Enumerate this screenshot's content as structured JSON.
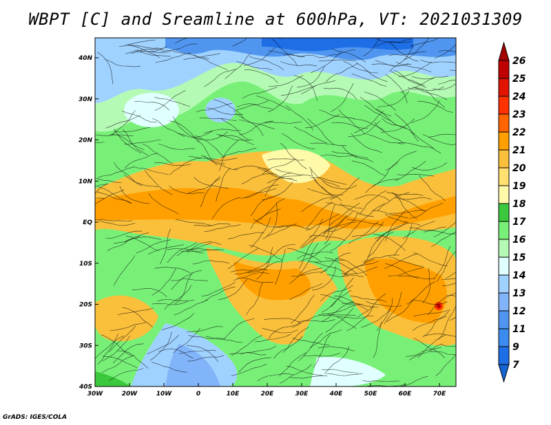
{
  "title": "WBPT [C] and Sreamline at 600hPa, VT: 2021031309",
  "footer": "GrADS: IGES/COLA",
  "lon_ticks": [
    "30W",
    "20W",
    "10W",
    "0",
    "10E",
    "20E",
    "30E",
    "40E",
    "50E",
    "60E",
    "70E"
  ],
  "lat_ticks": [
    "40N",
    "30N",
    "20N",
    "10N",
    "EQ",
    "10S",
    "20S",
    "30S",
    "40S"
  ],
  "colorbar": {
    "labels": [
      "26",
      "25",
      "24",
      "23",
      "22",
      "21",
      "20",
      "19",
      "18",
      "17",
      "16",
      "15",
      "14",
      "13",
      "12",
      "11",
      "9",
      "7"
    ],
    "top_arrow_color": "#a50000",
    "bottom_arrow_color": "#1464d2",
    "colors": [
      "#c00000",
      "#e11400",
      "#ff3200",
      "#ff6400",
      "#ffa000",
      "#fac03c",
      "#ffe070",
      "#fffaaa",
      "#3cc83c",
      "#78f078",
      "#b4fab4",
      "#e0ffff",
      "#a0d2ff",
      "#82b4fa",
      "#5096f0",
      "#3c8cf0",
      "#1e6ee6"
    ]
  }
}
